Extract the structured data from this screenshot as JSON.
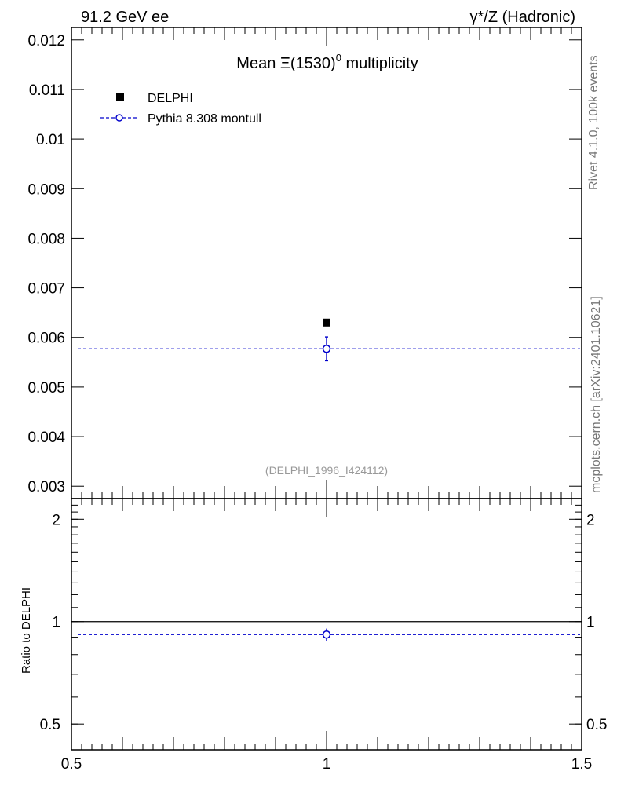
{
  "header": {
    "left_label": "91.2 GeV ee",
    "right_label": "γ*/Z (Hadronic)"
  },
  "side_labels": {
    "top": "Rivet 4.1.0,  100k events",
    "bottom": "mcplots.cern.ch [arXiv:2401.10621]"
  },
  "chart_data": {
    "type": "scatter",
    "title_prefix": "Mean Ξ(1530)",
    "title_sup": "0",
    "title_suffix": " multiplicity",
    "analysis_id": "(DELPHI_1996_I424112)",
    "xlim": [
      0.5,
      1.5
    ],
    "x_ticks": [
      0.5,
      1,
      1.5
    ],
    "x_tick_labels": [
      "0.5",
      "1",
      "1.5"
    ],
    "main": {
      "ylim": [
        0.00275,
        0.01225
      ],
      "y_ticks": [
        0.003,
        0.004,
        0.005,
        0.006,
        0.007,
        0.008,
        0.009,
        0.01,
        0.011,
        0.012
      ],
      "y_tick_labels": [
        "0.003",
        "0.004",
        "0.005",
        "0.006",
        "0.007",
        "0.008",
        "0.009",
        "0.01",
        "0.011",
        "0.012"
      ]
    },
    "ratio": {
      "ylabel": "Ratio to DELPHI",
      "scale": "log",
      "ylim": [
        0.42,
        2.3
      ],
      "y_ticks": [
        0.5,
        1,
        2
      ],
      "y_tick_labels": [
        "0.5",
        "1",
        "2"
      ]
    },
    "series": [
      {
        "name": "DELPHI",
        "style": "filled-square",
        "color": "#000000",
        "x": [
          1
        ],
        "y": [
          0.0063
        ],
        "yerr": [
          0.0
        ],
        "ratio": [
          1.0
        ]
      },
      {
        "name": "Pythia 8.308 montull",
        "style": "open-circle-dashed",
        "color": "#0000cc",
        "x": [
          1
        ],
        "y": [
          0.00577
        ],
        "yerr": [
          0.00024
        ],
        "ratio": [
          0.916
        ],
        "ratio_err": [
          0.038
        ]
      }
    ]
  }
}
